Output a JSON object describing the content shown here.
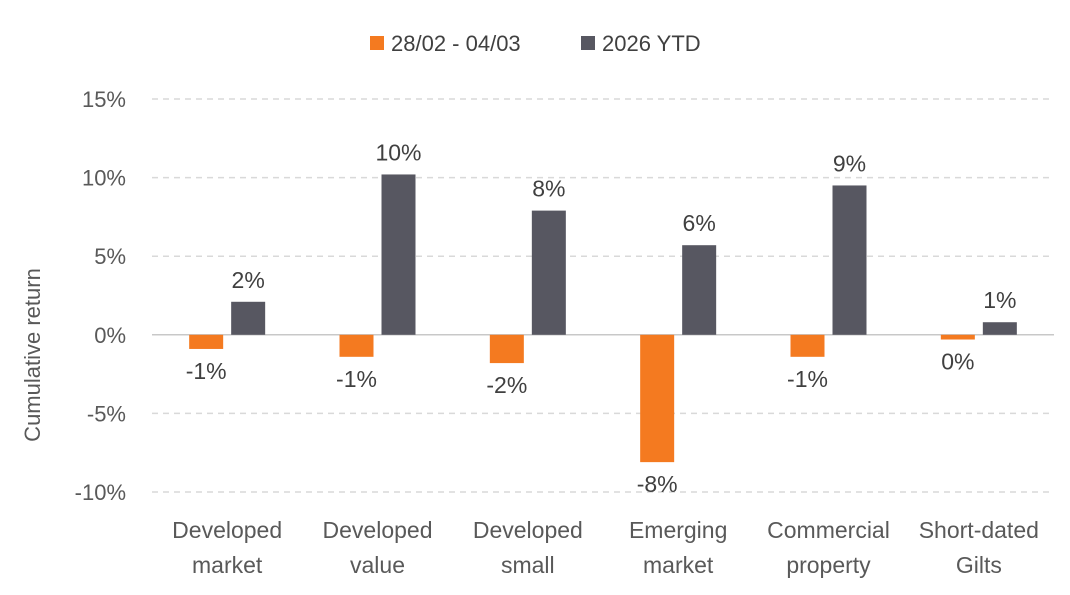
{
  "chart_data": {
    "type": "bar",
    "title": "",
    "xlabel": "",
    "ylabel": "Cumulative return",
    "ylim": [
      -10,
      15
    ],
    "ytick_values": [
      15,
      10,
      5,
      0,
      -5,
      -10
    ],
    "ytick_labels": [
      "15%",
      "10%",
      "5%",
      "0%",
      "-5%",
      "-10%"
    ],
    "grid": true,
    "legend_position": "top-center",
    "categories": [
      [
        "Developed",
        "market"
      ],
      [
        "Developed",
        "value"
      ],
      [
        "Developed",
        "small"
      ],
      [
        "Emerging",
        "market"
      ],
      [
        "Commercial",
        "property"
      ],
      [
        "Short-dated",
        "Gilts"
      ]
    ],
    "series": [
      {
        "name": "28/02 - 04/03",
        "color": "#F47A20",
        "values": [
          -0.9,
          -1.4,
          -1.8,
          -8.1,
          -1.4,
          -0.3
        ],
        "labels": [
          "-1%",
          "-1%",
          "-2%",
          "-8%",
          "-1%",
          "0%"
        ]
      },
      {
        "name": "2026 YTD",
        "color": "#575761",
        "values": [
          2.1,
          10.2,
          7.9,
          5.7,
          9.5,
          0.8
        ],
        "labels": [
          "2%",
          "10%",
          "8%",
          "6%",
          "9%",
          "1%"
        ]
      }
    ]
  }
}
